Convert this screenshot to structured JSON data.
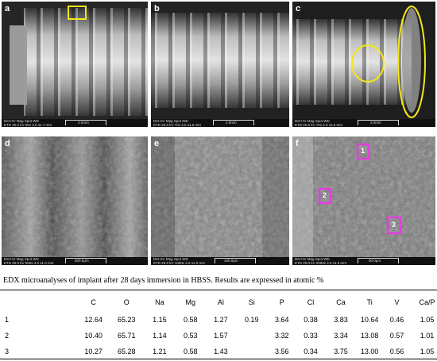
{
  "panels": [
    {
      "id": "a",
      "info_keys": "Det   HV   Mag  Spot   WD",
      "info_vals": "ETD 20.0 kV  60x  4.0  11.7 mm",
      "scale": "2.0mm"
    },
    {
      "id": "b",
      "info_keys": "Det   HV   Mag  Spot   WD",
      "info_vals": "ETD 20.0 kV  70x  4.0  11.6 mm",
      "scale": "2.0mm"
    },
    {
      "id": "c",
      "info_keys": "Det   HV   Mag  Spot   WD",
      "info_vals": "ETD 20.0 kV  70x  4.0  11.6 mm",
      "scale": "2.0mm"
    },
    {
      "id": "d",
      "info_keys": "Det   HV   Mag  Spot   WD",
      "info_vals": "ETD 20.0 kV  500x  4.0  11.0 mm",
      "scale": "500.0µm"
    },
    {
      "id": "e",
      "info_keys": "Det   HV   Mag  Spot   WD",
      "info_vals": "ETD 20.0 kV  1000x  4.0  11.0 mm",
      "scale": "100.0µm"
    },
    {
      "id": "f",
      "info_keys": "Det   HV   Mag  Spot   WD",
      "info_vals": "ETD 20.0 kV  2000x  4.0  11.8 mm",
      "scale": "50.0µm"
    }
  ],
  "markers": [
    "1",
    "2",
    "3"
  ],
  "highlight_colors": {
    "yellow": "#f5e614",
    "magenta": "#e33ee0"
  },
  "caption": "EDX microanalyses of implant after 28 days immersion in HBSS. Results are expressed in atomic %",
  "table": {
    "headers": [
      "C",
      "O",
      "Na",
      "Mg",
      "Al",
      "Si",
      "P",
      "Cl",
      "Ca",
      "Ti",
      "V",
      "Ca/P"
    ],
    "rows": [
      {
        "label": "1",
        "values": [
          "12.64",
          "65.23",
          "1.15",
          "0.58",
          "1.27",
          "0.19",
          "3.64",
          "0.38",
          "3.83",
          "10.64",
          "0.46",
          "1.05"
        ]
      },
      {
        "label": "2",
        "values": [
          "10.40",
          "65.71",
          "1.14",
          "0.53",
          "1.57",
          "",
          "3.32",
          "0.33",
          "3.34",
          "13.08",
          "0.57",
          "1.01"
        ]
      },
      {
        "label": "3",
        "values": [
          "10.27",
          "65.28",
          "1.21",
          "0.58",
          "1.43",
          "",
          "3.56",
          "0.34",
          "3.75",
          "13.00",
          "0.56",
          "1.05"
        ]
      }
    ]
  }
}
